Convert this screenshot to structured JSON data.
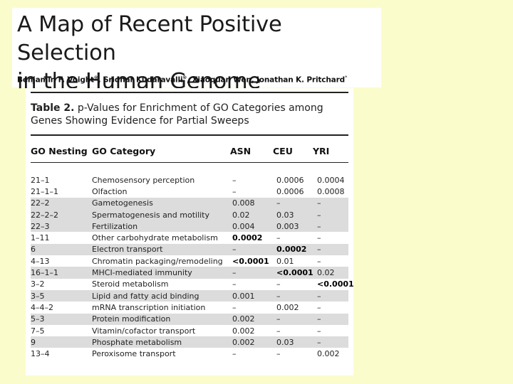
{
  "header": {
    "title_line1": "A Map of Recent Positive Selection",
    "title_line2": "in the Human Genome",
    "authors_a": "Benjamin F. Voight",
    "authors_b": ", Sridhar Kudaravalli",
    "authors_c": ", Xiaoquan Wen, Jonathan K. Pritchard",
    "author_mark": "*"
  },
  "table": {
    "caption_label": "Table 2.",
    "caption_text": " p-Values for Enrichment of GO Categories among Genes Showing Evidence for Partial Sweeps",
    "columns": [
      "GO Nesting",
      "GO Category",
      "ASN",
      "CEU",
      "YRI"
    ],
    "rows": [
      {
        "nesting": "21–1",
        "category": "Chemosensory perception",
        "asn": "–",
        "ceu": "0.0006",
        "yri": "0.0004",
        "shade": false
      },
      {
        "nesting": "21–1–1",
        "category": "Olfaction",
        "asn": "–",
        "ceu": "0.0006",
        "yri": "0.0008",
        "shade": false
      },
      {
        "nesting": "22–2",
        "category": "Gametogenesis",
        "asn": "0.008",
        "ceu": "–",
        "yri": "–",
        "shade": true
      },
      {
        "nesting": "22–2–2",
        "category": "Spermatogenesis and motility",
        "asn": "0.02",
        "ceu": "0.03",
        "yri": "–",
        "shade": true
      },
      {
        "nesting": "22–3",
        "category": "Fertilization",
        "asn": "0.004",
        "ceu": "0.003",
        "yri": "–",
        "shade": true
      },
      {
        "nesting": "1–11",
        "category": "Other carbohydrate metabolism",
        "asn": "0.0002",
        "ceu": "–",
        "yri": "–",
        "shade": false,
        "bold": "asn"
      },
      {
        "nesting": "6",
        "category": "Electron transport",
        "asn": "–",
        "ceu": "0.0002",
        "yri": "–",
        "shade": true,
        "bold": "ceu"
      },
      {
        "nesting": "4–13",
        "category": "Chromatin packaging/remodeling",
        "asn": "<0.0001",
        "ceu": "0.01",
        "yri": "–",
        "shade": false,
        "bold": "asn"
      },
      {
        "nesting": "16–1–1",
        "category": "MHCI-mediated immunity",
        "asn": "–",
        "ceu": "<0.0001",
        "yri": "0.02",
        "shade": true,
        "bold": "ceu"
      },
      {
        "nesting": "3–2",
        "category": "Steroid metabolism",
        "asn": "–",
        "ceu": "–",
        "yri": "<0.0001",
        "shade": false,
        "bold": "yri"
      },
      {
        "nesting": "3–5",
        "category": "Lipid and fatty acid binding",
        "asn": "0.001",
        "ceu": "–",
        "yri": "–",
        "shade": true
      },
      {
        "nesting": "4–4–2",
        "category": "mRNA transcription initiation",
        "asn": "–",
        "ceu": "0.002",
        "yri": "–",
        "shade": false
      },
      {
        "nesting": "5–3",
        "category": "Protein modification",
        "asn": "0.002",
        "ceu": "–",
        "yri": "–",
        "shade": true
      },
      {
        "nesting": "7–5",
        "category": "Vitamin/cofactor transport",
        "asn": "0.002",
        "ceu": "–",
        "yri": "–",
        "shade": false
      },
      {
        "nesting": "9",
        "category": "Phosphate metabolism",
        "asn": "0.002",
        "ceu": "0.03",
        "yri": "–",
        "shade": true
      },
      {
        "nesting": "13–4",
        "category": "Peroxisome transport",
        "asn": "–",
        "ceu": "–",
        "yri": "0.002",
        "shade": false
      }
    ]
  }
}
